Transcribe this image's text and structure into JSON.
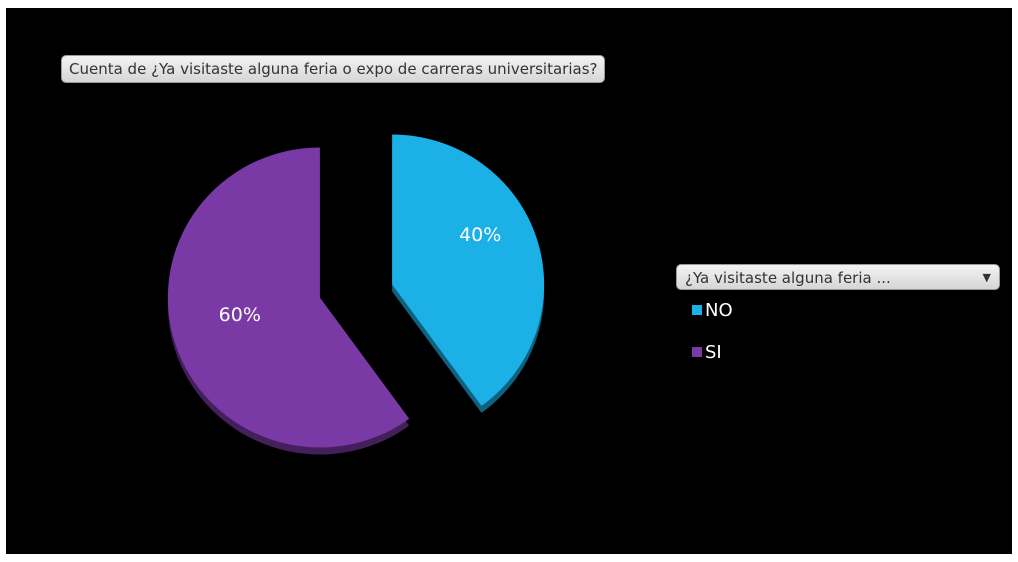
{
  "chart_data": {
    "type": "pie",
    "title": "Cuenta de ¿Ya visitaste alguna feria o expo de carreras universitarias?",
    "legend_title": "¿Ya visitaste alguna feria ...",
    "legend_position": "right",
    "categories": [
      "NO",
      "SI"
    ],
    "values": [
      40,
      60
    ],
    "data_labels": [
      "40%",
      "60%"
    ],
    "colors": [
      "#1bb0e6",
      "#7a3aa6"
    ]
  },
  "icons": {
    "legend_dropdown": "chevron-down-icon"
  }
}
